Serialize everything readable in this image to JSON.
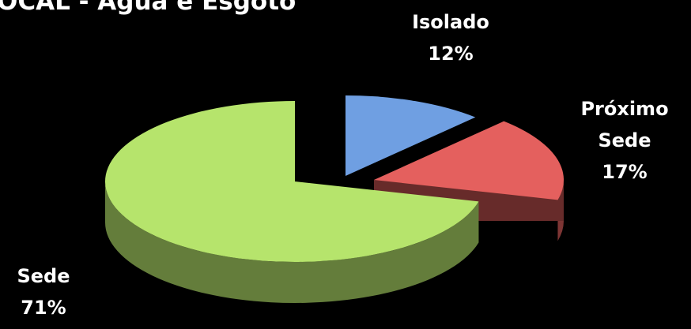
{
  "chart_data": {
    "type": "pie3d",
    "title": "OCAL - Água e Esgoto",
    "categories": [
      "Isolado",
      "Próximo Sede",
      "Sede"
    ],
    "values": [
      12,
      17,
      71
    ],
    "value_labels": [
      "12%",
      "17%",
      "71%"
    ],
    "colors": [
      "#6f9fe2",
      "#e4605e",
      "#b6e46c"
    ]
  }
}
